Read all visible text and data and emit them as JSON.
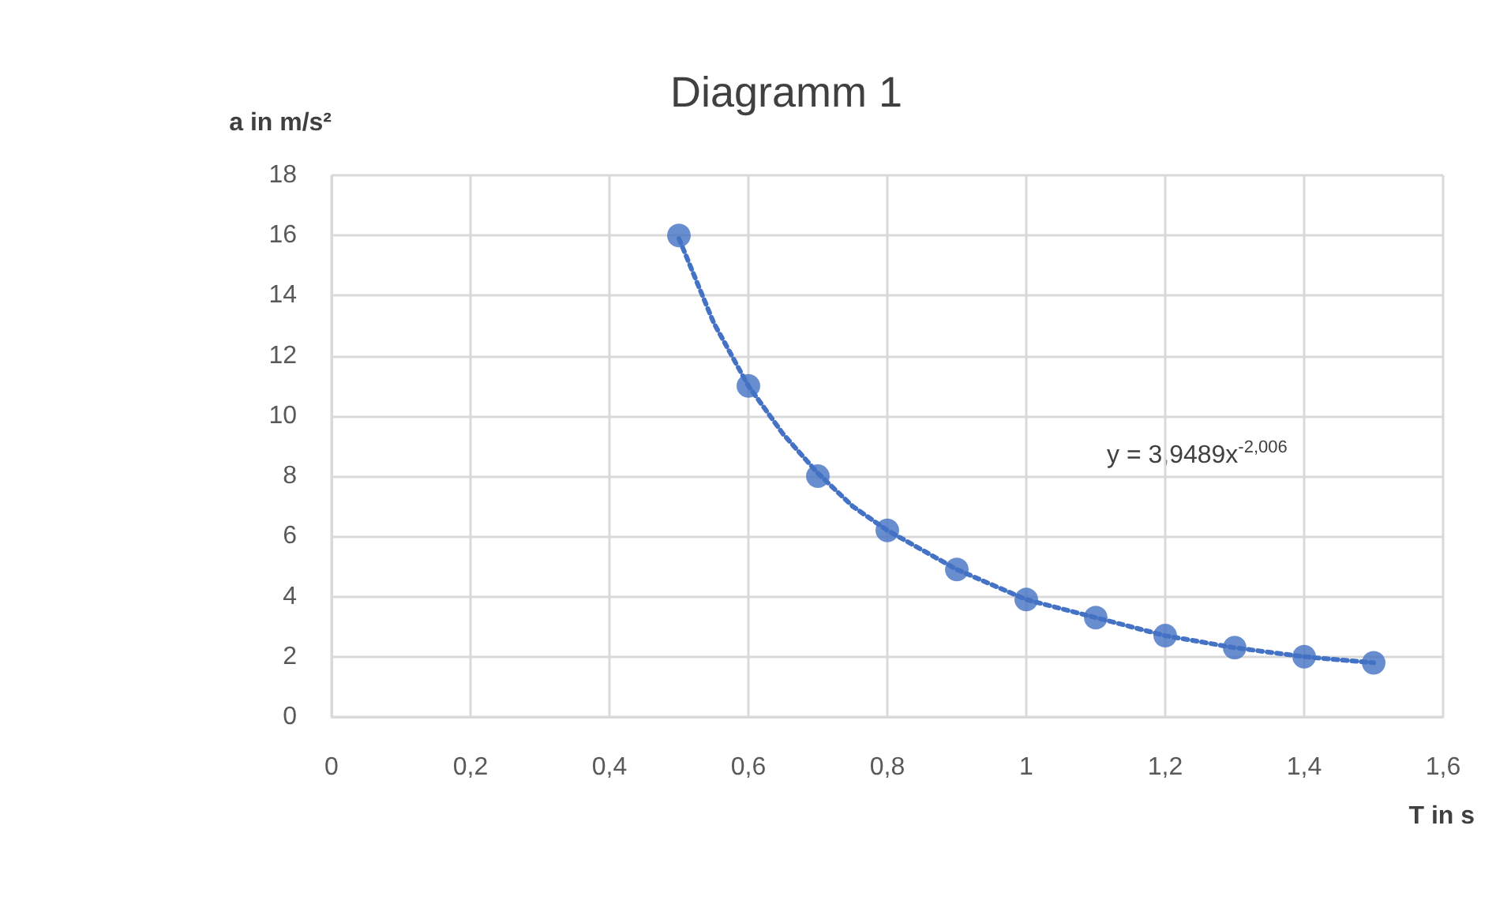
{
  "chart_data": {
    "type": "scatter",
    "title": "Diagramm 1",
    "xlabel": "T in s",
    "ylabel": "a in m/s²",
    "x": [
      0.5,
      0.6,
      0.7,
      0.8,
      0.9,
      1.0,
      1.1,
      1.2,
      1.3,
      1.4,
      1.5
    ],
    "series": [
      {
        "color": "#4472c4",
        "marker": "circle",
        "values": [
          16,
          11,
          8,
          6.2,
          4.9,
          3.9,
          3.3,
          2.7,
          2.3,
          2.0,
          1.8
        ]
      },
      {
        "type": "line",
        "color": "#4472c4",
        "marker": "none",
        "line_style": "dotted",
        "x": [
          0.5,
          0.55,
          0.6,
          0.65,
          0.7,
          0.75,
          0.8,
          0.9,
          1.0,
          1.1,
          1.2,
          1.3,
          1.4,
          1.5
        ],
        "values": [
          15.9,
          13.1,
          11.0,
          9.4,
          8.1,
          7.0,
          6.2,
          4.9,
          3.9,
          3.3,
          2.7,
          2.3,
          2.0,
          1.8
        ]
      }
    ],
    "xlim": [
      0,
      1.6
    ],
    "xticks": [
      0,
      {
        "value": 0.2,
        "label": "0,2"
      },
      {
        "value": 0.4,
        "label": "0,4"
      },
      {
        "value": 0.6,
        "label": "0,6"
      },
      {
        "value": 0.8,
        "label": "0,8"
      },
      1,
      {
        "value": 1.2,
        "label": "1,2"
      },
      {
        "value": 1.4,
        "label": "1,4"
      },
      {
        "value": 1.6,
        "label": "1,6"
      }
    ],
    "ylim": [
      0,
      18
    ],
    "yticks": [
      0,
      2,
      4,
      6,
      8,
      10,
      12,
      14,
      16,
      18
    ],
    "grid": true,
    "annotations": [
      "y = 3,9489x$^{-2,006}$"
    ]
  }
}
